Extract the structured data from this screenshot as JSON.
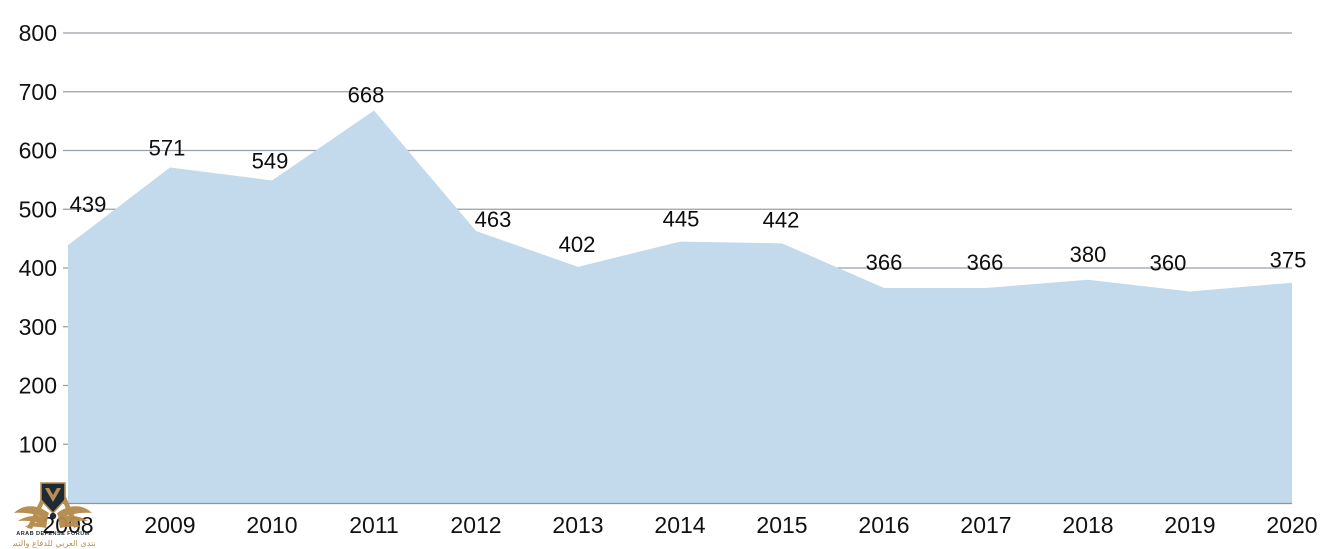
{
  "chart_data": {
    "type": "area",
    "title": "",
    "categories": [
      "2008",
      "2009",
      "2010",
      "2011",
      "2012",
      "2013",
      "2014",
      "2015",
      "2016",
      "2017",
      "2018",
      "2019",
      "2020"
    ],
    "values": [
      439,
      571,
      549,
      668,
      463,
      402,
      445,
      442,
      366,
      366,
      380,
      360,
      375
    ],
    "data_labels": [
      "439",
      "571",
      "549",
      "668",
      "463",
      "402",
      "445",
      "442",
      "366",
      "366",
      "380",
      "360",
      "375"
    ],
    "xlabel": "",
    "ylabel": "",
    "ylim": [
      0,
      800
    ],
    "yticks": [
      100,
      200,
      300,
      400,
      500,
      600,
      700,
      800
    ],
    "ytick_labels": [
      "100",
      "200",
      "300",
      "400",
      "500",
      "600",
      "700",
      "800"
    ],
    "grid": "horizontal",
    "legend": "none",
    "colors": {
      "area_fill": "#c3d9ec",
      "gridline": "#98a0a6",
      "baseline": "#8f979c",
      "text": "#111111"
    }
  },
  "watermark": {
    "title_en": "ARAB DEFENSE FORUM",
    "title_ar": "المنتدى العربي للدفاع والتسليح",
    "colors": {
      "navy": "#15222e",
      "gold": "#b68b4c",
      "gold_light": "#c9a05f"
    }
  }
}
